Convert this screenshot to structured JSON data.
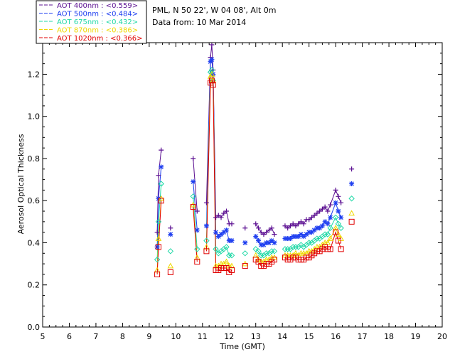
{
  "chart_data": {
    "type": "line",
    "site_info": "PML, N 50 22', W 04 08', Alt 0m",
    "date_info": "Data from: 10 Mar 2014",
    "xlabel": "Time (GMT)",
    "ylabel": "Aerosol Optical Thickness",
    "xlim": [
      5,
      20
    ],
    "ylim": [
      0,
      1.35
    ],
    "xticks": [
      "5",
      "6",
      "7",
      "8",
      "9",
      "10",
      "11",
      "12",
      "13",
      "14",
      "15",
      "16",
      "17",
      "18",
      "19",
      "20"
    ],
    "yticks": [
      "0.0",
      "0.2",
      "0.4",
      "0.6",
      "0.8",
      "1.0",
      "1.2"
    ],
    "series": [
      {
        "name": "AOT  400nm : <0.559>",
        "color": "#5b0f91",
        "marker": "plus",
        "x": [
          9.3,
          9.35,
          9.45,
          9.8,
          10.65,
          10.8,
          11.15,
          11.3,
          11.35,
          11.4,
          11.5,
          11.6,
          11.7,
          11.8,
          11.9,
          12.0,
          12.1,
          12.6,
          13.0,
          13.1,
          13.2,
          13.3,
          13.4,
          13.5,
          13.6,
          13.7,
          14.1,
          14.2,
          14.3,
          14.4,
          14.5,
          14.6,
          14.7,
          14.8,
          14.9,
          15.0,
          15.1,
          15.2,
          15.3,
          15.4,
          15.5,
          15.6,
          15.7,
          15.8,
          16.0,
          16.1,
          16.2,
          16.6
        ],
        "y": [
          0.45,
          0.72,
          0.84,
          0.47,
          0.8,
          0.55,
          0.59,
          1.28,
          1.34,
          1.22,
          0.52,
          0.53,
          0.52,
          0.54,
          0.55,
          0.49,
          0.49,
          0.47,
          0.49,
          0.47,
          0.45,
          0.44,
          0.45,
          0.46,
          0.47,
          0.44,
          0.48,
          0.47,
          0.48,
          0.49,
          0.48,
          0.49,
          0.5,
          0.49,
          0.51,
          0.51,
          0.52,
          0.53,
          0.54,
          0.55,
          0.56,
          0.57,
          0.55,
          0.58,
          0.65,
          0.62,
          0.59,
          0.75
        ]
      },
      {
        "name": "AOT  500nm : <0.484>",
        "color": "#1f3ff0",
        "marker": "asterisk",
        "x": [
          9.3,
          9.35,
          9.45,
          9.8,
          10.65,
          10.8,
          11.15,
          11.3,
          11.35,
          11.4,
          11.5,
          11.6,
          11.7,
          11.8,
          11.9,
          12.0,
          12.1,
          12.6,
          13.0,
          13.1,
          13.2,
          13.3,
          13.4,
          13.5,
          13.6,
          13.7,
          14.1,
          14.2,
          14.3,
          14.4,
          14.5,
          14.6,
          14.7,
          14.8,
          14.9,
          15.0,
          15.1,
          15.2,
          15.3,
          15.4,
          15.5,
          15.6,
          15.7,
          15.8,
          16.0,
          16.1,
          16.2,
          16.6
        ],
        "y": [
          0.38,
          0.61,
          0.76,
          0.44,
          0.69,
          0.46,
          0.48,
          1.26,
          1.27,
          1.2,
          0.45,
          0.43,
          0.44,
          0.45,
          0.46,
          0.41,
          0.41,
          0.4,
          0.43,
          0.41,
          0.39,
          0.39,
          0.4,
          0.4,
          0.41,
          0.4,
          0.42,
          0.42,
          0.42,
          0.43,
          0.43,
          0.43,
          0.44,
          0.43,
          0.44,
          0.45,
          0.45,
          0.46,
          0.47,
          0.47,
          0.48,
          0.5,
          0.49,
          0.52,
          0.59,
          0.55,
          0.52,
          0.68
        ]
      },
      {
        "name": "AOT  675nm : <0.432>",
        "color": "#1fd8a6",
        "marker": "diamond",
        "x": [
          9.3,
          9.35,
          9.45,
          9.8,
          10.65,
          10.8,
          11.15,
          11.3,
          11.35,
          11.4,
          11.5,
          11.6,
          11.7,
          11.8,
          11.9,
          12.0,
          12.1,
          12.6,
          13.0,
          13.1,
          13.2,
          13.3,
          13.4,
          13.5,
          13.6,
          13.7,
          14.1,
          14.2,
          14.3,
          14.4,
          14.5,
          14.6,
          14.7,
          14.8,
          14.9,
          15.0,
          15.1,
          15.2,
          15.3,
          15.4,
          15.5,
          15.6,
          15.7,
          15.8,
          16.0,
          16.1,
          16.2,
          16.6
        ],
        "y": [
          0.32,
          0.5,
          0.68,
          0.36,
          0.62,
          0.37,
          0.41,
          1.21,
          1.22,
          1.17,
          0.37,
          0.35,
          0.36,
          0.37,
          0.38,
          0.34,
          0.34,
          0.35,
          0.37,
          0.36,
          0.34,
          0.34,
          0.35,
          0.35,
          0.36,
          0.36,
          0.37,
          0.37,
          0.37,
          0.38,
          0.38,
          0.38,
          0.39,
          0.38,
          0.39,
          0.4,
          0.4,
          0.41,
          0.42,
          0.42,
          0.43,
          0.44,
          0.44,
          0.47,
          0.52,
          0.49,
          0.47,
          0.61
        ]
      },
      {
        "name": "AOT  870nm : <0.386>",
        "color": "#f0d800",
        "marker": "triangle",
        "x": [
          9.3,
          9.35,
          9.45,
          9.8,
          10.65,
          10.8,
          11.15,
          11.3,
          11.35,
          11.4,
          11.5,
          11.6,
          11.7,
          11.8,
          11.9,
          12.0,
          12.1,
          12.6,
          13.0,
          13.1,
          13.2,
          13.3,
          13.4,
          13.5,
          13.6,
          13.7,
          14.1,
          14.2,
          14.3,
          14.4,
          14.5,
          14.6,
          14.7,
          14.8,
          14.9,
          15.0,
          15.1,
          15.2,
          15.3,
          15.4,
          15.5,
          15.6,
          15.7,
          15.8,
          16.0,
          16.1,
          16.2,
          16.6
        ],
        "y": [
          0.27,
          0.42,
          0.61,
          0.29,
          0.58,
          0.33,
          0.38,
          1.19,
          1.2,
          1.17,
          0.29,
          0.29,
          0.3,
          0.3,
          0.31,
          0.29,
          0.29,
          0.3,
          0.34,
          0.32,
          0.31,
          0.31,
          0.32,
          0.32,
          0.33,
          0.33,
          0.34,
          0.34,
          0.34,
          0.34,
          0.35,
          0.34,
          0.35,
          0.35,
          0.35,
          0.36,
          0.36,
          0.37,
          0.38,
          0.38,
          0.39,
          0.4,
          0.4,
          0.42,
          0.47,
          0.44,
          0.42,
          0.54
        ]
      },
      {
        "name": "AOT 1020nm : <0.366>",
        "color": "#e00000",
        "marker": "square",
        "x": [
          9.3,
          9.35,
          9.45,
          9.8,
          10.65,
          10.8,
          11.15,
          11.3,
          11.35,
          11.4,
          11.5,
          11.6,
          11.7,
          11.8,
          11.9,
          12.0,
          12.1,
          12.6,
          13.0,
          13.1,
          13.2,
          13.3,
          13.4,
          13.5,
          13.6,
          13.7,
          14.1,
          14.2,
          14.3,
          14.4,
          14.5,
          14.6,
          14.7,
          14.8,
          14.9,
          15.0,
          15.1,
          15.2,
          15.3,
          15.4,
          15.5,
          15.6,
          15.7,
          15.8,
          16.0,
          16.1,
          16.2,
          16.6
        ],
        "y": [
          0.25,
          0.38,
          0.6,
          0.26,
          0.57,
          0.31,
          0.36,
          1.16,
          1.17,
          1.15,
          0.27,
          0.27,
          0.28,
          0.28,
          0.28,
          0.26,
          0.27,
          0.29,
          0.32,
          0.31,
          0.29,
          0.29,
          0.3,
          0.3,
          0.31,
          0.32,
          0.33,
          0.32,
          0.32,
          0.33,
          0.33,
          0.32,
          0.32,
          0.32,
          0.33,
          0.33,
          0.34,
          0.35,
          0.36,
          0.36,
          0.37,
          0.38,
          0.37,
          0.37,
          0.45,
          0.41,
          0.37,
          0.5
        ]
      }
    ]
  }
}
